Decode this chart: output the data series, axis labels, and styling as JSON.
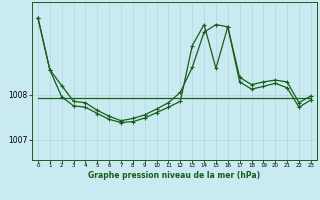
{
  "background_color": "#c8eaf0",
  "grid_color": "#b0d8e0",
  "line_color": "#1a5c1a",
  "xlabel": "Graphe pression niveau de la mer (hPa)",
  "yticks": [
    1007,
    1008
  ],
  "xticks": [
    0,
    1,
    2,
    3,
    4,
    5,
    6,
    7,
    8,
    9,
    10,
    11,
    12,
    13,
    14,
    15,
    16,
    17,
    18,
    19,
    20,
    21,
    22,
    23
  ],
  "xlim": [
    -0.5,
    23.5
  ],
  "ylim": [
    1006.55,
    1010.05
  ],
  "s1_y": [
    1009.7,
    1008.55,
    1008.2,
    1007.85,
    1007.82,
    1007.65,
    1007.52,
    1007.42,
    1007.47,
    1007.55,
    1007.68,
    1007.82,
    1008.05,
    1008.6,
    1009.38,
    1009.55,
    1009.5,
    1008.38,
    1008.22,
    1008.28,
    1008.32,
    1008.28,
    1007.82,
    1007.97
  ],
  "s2_y": [
    1009.7,
    1008.55,
    1007.95,
    1007.75,
    1007.72,
    1007.58,
    1007.45,
    1007.38,
    1007.4,
    1007.48,
    1007.6,
    1007.72,
    1007.85,
    1009.08,
    1009.55,
    1008.58,
    1009.5,
    1008.28,
    1008.12,
    1008.18,
    1008.25,
    1008.15,
    1007.72,
    1007.88
  ],
  "s3_y": [
    1007.92,
    1007.92,
    1007.92,
    1007.92,
    1007.92,
    1007.92,
    1007.92,
    1007.92,
    1007.92,
    1007.92,
    1007.92,
    1007.92,
    1007.92,
    1007.92,
    1007.92,
    1007.92,
    1007.92,
    1007.92,
    1007.92,
    1007.92,
    1007.92,
    1007.92,
    1007.92,
    1007.92
  ]
}
